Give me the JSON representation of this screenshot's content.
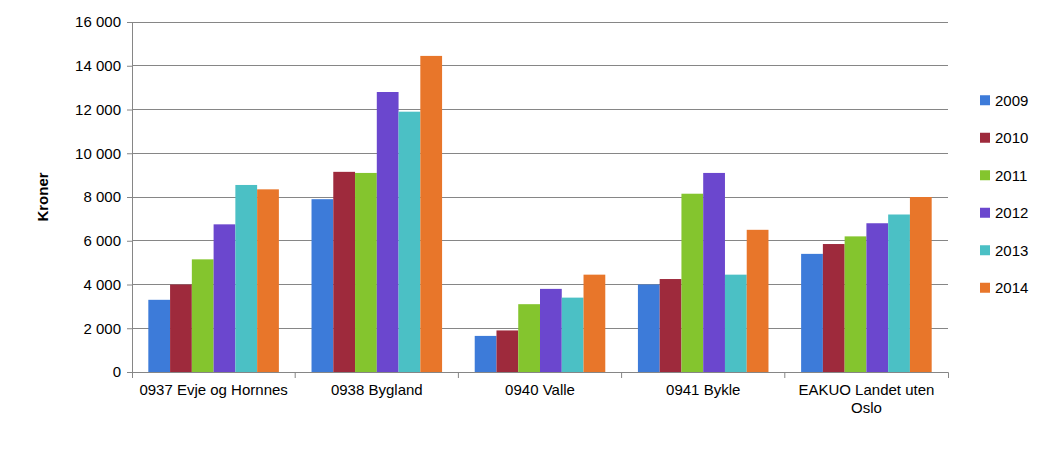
{
  "chart_data": {
    "type": "bar",
    "y_label": "Kroner",
    "categories": [
      "0937 Evje og Hornnes",
      "0938 Bygland",
      "0940 Valle",
      "0941 Bykle",
      "EAKUO Landet uten Oslo"
    ],
    "series": [
      {
        "name": "2009",
        "color": "#3d7bd9",
        "values": [
          3300,
          7900,
          1650,
          4000,
          5400
        ]
      },
      {
        "name": "2010",
        "color": "#9e2a3c",
        "values": [
          4000,
          9150,
          1900,
          4250,
          5850
        ]
      },
      {
        "name": "2011",
        "color": "#84c52e",
        "values": [
          5150,
          9100,
          3100,
          8150,
          6200
        ]
      },
      {
        "name": "2012",
        "color": "#6b47ce",
        "values": [
          6750,
          12800,
          3800,
          9100,
          6800
        ]
      },
      {
        "name": "2013",
        "color": "#4bc0c5",
        "values": [
          8550,
          11900,
          3400,
          4450,
          7200
        ]
      },
      {
        "name": "2014",
        "color": "#e8762a",
        "values": [
          8350,
          14450,
          4450,
          6500,
          8000
        ]
      }
    ],
    "ylim": [
      0,
      16000
    ],
    "yticks": [
      0,
      {
        "value": 2000,
        "label": "2 000"
      },
      {
        "value": 4000,
        "label": "4 000"
      },
      {
        "value": 6000,
        "label": "6 000"
      },
      {
        "value": 8000,
        "label": "8 000"
      },
      {
        "value": 10000,
        "label": "10 000"
      },
      {
        "value": 12000,
        "label": "12 000"
      },
      {
        "value": 14000,
        "label": "14 000"
      },
      {
        "value": 16000,
        "label": "16 000"
      }
    ],
    "grid": true,
    "legend": "right"
  }
}
